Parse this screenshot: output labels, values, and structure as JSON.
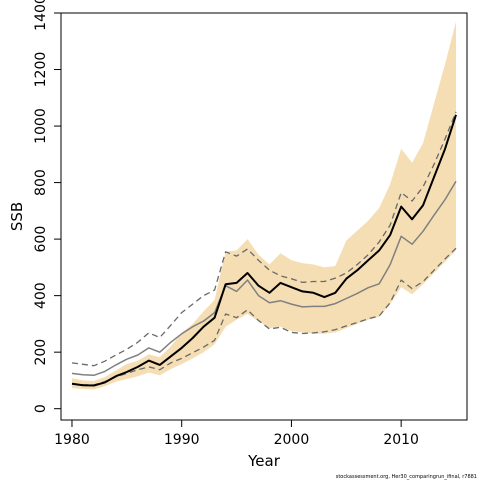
{
  "chart_data": {
    "type": "line",
    "xlabel": "Year",
    "ylabel": "SSB",
    "xlim": [
      1979,
      2016
    ],
    "ylim": [
      -40,
      1400
    ],
    "xticks": [
      1980,
      1990,
      2000,
      2010
    ],
    "yticks": [
      0,
      200,
      400,
      600,
      800,
      1000,
      1200,
      1400
    ],
    "grid": false,
    "x": [
      1980,
      1981,
      1982,
      1983,
      1984,
      1985,
      1986,
      1987,
      1988,
      1989,
      1990,
      1991,
      1992,
      1993,
      1994,
      1995,
      1996,
      1997,
      1998,
      1999,
      2000,
      2001,
      2002,
      2003,
      2004,
      2005,
      2006,
      2007,
      2008,
      2009,
      2010,
      2011,
      2012,
      2013,
      2014,
      2015
    ],
    "band": {
      "lower": [
        72,
        70,
        68,
        80,
        95,
        105,
        115,
        128,
        118,
        140,
        158,
        178,
        200,
        228,
        290,
        315,
        335,
        310,
        285,
        290,
        275,
        270,
        265,
        265,
        270,
        285,
        300,
        315,
        325,
        370,
        430,
        405,
        440,
        480,
        520,
        560
      ],
      "upper": [
        108,
        100,
        98,
        112,
        135,
        158,
        170,
        192,
        182,
        220,
        268,
        300,
        345,
        385,
        555,
        560,
        600,
        545,
        510,
        550,
        525,
        515,
        510,
        500,
        505,
        595,
        630,
        665,
        710,
        795,
        920,
        870,
        940,
        1080,
        1220,
        1370
      ]
    },
    "series": [
      {
        "values": [
          88,
          83,
          82,
          93,
          115,
          130,
          148,
          170,
          155,
          185,
          215,
          250,
          290,
          322,
          440,
          445,
          480,
          435,
          410,
          445,
          430,
          415,
          410,
          395,
          410,
          460,
          490,
          525,
          560,
          615,
          715,
          670,
          720,
          820,
          920,
          1040
        ]
      },
      {
        "values": [
          125,
          120,
          118,
          132,
          155,
          175,
          190,
          215,
          200,
          235,
          265,
          290,
          310,
          340,
          435,
          415,
          455,
          400,
          375,
          382,
          370,
          360,
          362,
          362,
          372,
          390,
          408,
          428,
          442,
          510,
          610,
          582,
          628,
          685,
          740,
          805
        ]
      },
      {
        "values": [
          162,
          157,
          152,
          168,
          190,
          210,
          235,
          268,
          252,
          295,
          340,
          370,
          400,
          420,
          555,
          540,
          565,
          525,
          490,
          470,
          460,
          447,
          450,
          450,
          462,
          480,
          510,
          545,
          590,
          650,
          765,
          735,
          785,
          865,
          955,
          1050
        ]
      },
      {
        "values": [
          88,
          85,
          84,
          96,
          113,
          125,
          138,
          148,
          138,
          162,
          178,
          198,
          218,
          242,
          335,
          322,
          350,
          312,
          282,
          288,
          270,
          266,
          268,
          272,
          280,
          293,
          305,
          318,
          328,
          375,
          455,
          425,
          450,
          490,
          530,
          568
        ]
      }
    ],
    "colors": {
      "band": "#f5deb3",
      "line_best": "#000000",
      "line_grey": "#808080",
      "line_dashed": "#696969",
      "axis": "#000000"
    },
    "annotation": "stockassessment.org, Her30_comparingrun_ifinal, r7881"
  }
}
